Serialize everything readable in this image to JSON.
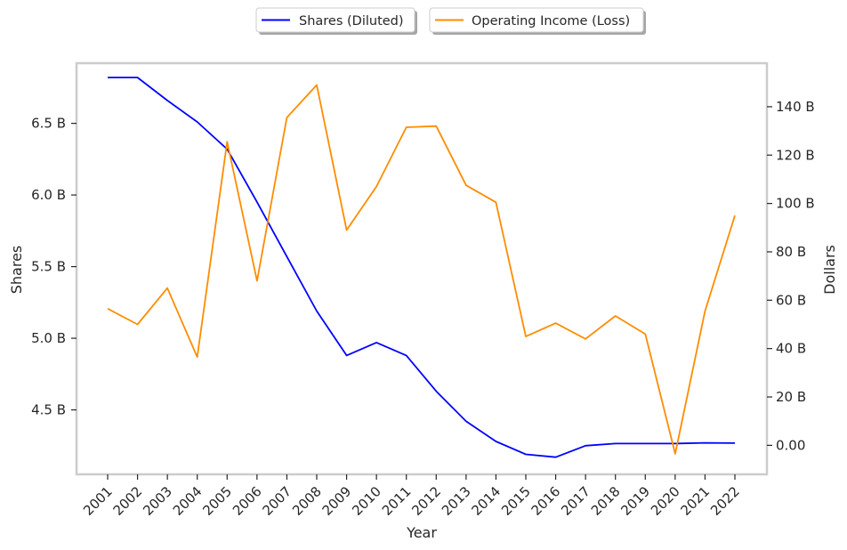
{
  "chart_data": {
    "type": "line",
    "xlabel": "Year",
    "ylabel_left": "Shares",
    "ylabel_right": "Dollars",
    "categories": [
      "2001",
      "2002",
      "2003",
      "2004",
      "2005",
      "2006",
      "2007",
      "2008",
      "2009",
      "2010",
      "2011",
      "2012",
      "2013",
      "2014",
      "2015",
      "2016",
      "2017",
      "2018",
      "2019",
      "2020",
      "2021",
      "2022"
    ],
    "left_axis": {
      "min": 4.05,
      "max": 6.92,
      "ticks": [
        4.5,
        5.0,
        5.5,
        6.0,
        6.5
      ],
      "tick_labels": [
        "4.5 B",
        "5.0 B",
        "5.5 B",
        "6.0 B",
        "6.5 B"
      ]
    },
    "right_axis": {
      "min": -12,
      "max": 158,
      "ticks": [
        0,
        20,
        40,
        60,
        80,
        100,
        120,
        140
      ],
      "tick_labels": [
        "0.00",
        "20 B",
        "40 B",
        "60 B",
        "80 B",
        "100 B",
        "120 B",
        "140 B"
      ]
    },
    "series": [
      {
        "name": "Shares (Diluted)",
        "axis": "left",
        "color": "#0000ff",
        "unit": "billions",
        "values": [
          6.82,
          6.82,
          6.66,
          6.51,
          6.32,
          5.95,
          5.57,
          5.19,
          4.88,
          4.97,
          4.88,
          4.63,
          4.42,
          4.28,
          4.19,
          4.17,
          4.25,
          4.265,
          4.265,
          4.265,
          4.27,
          4.268
        ]
      },
      {
        "name": "Operating Income (Loss)",
        "axis": "right",
        "color": "#ff8c00",
        "unit": "billions USD",
        "values": [
          56.5,
          50.0,
          65.0,
          36.5,
          125.5,
          68.0,
          135.5,
          149.0,
          89.0,
          107.0,
          131.5,
          132.0,
          107.5,
          100.5,
          45.0,
          50.5,
          44.0,
          53.5,
          46.0,
          -3.5,
          55.5,
          95.0
        ]
      }
    ],
    "legend_position": "top-center",
    "grid": false
  }
}
